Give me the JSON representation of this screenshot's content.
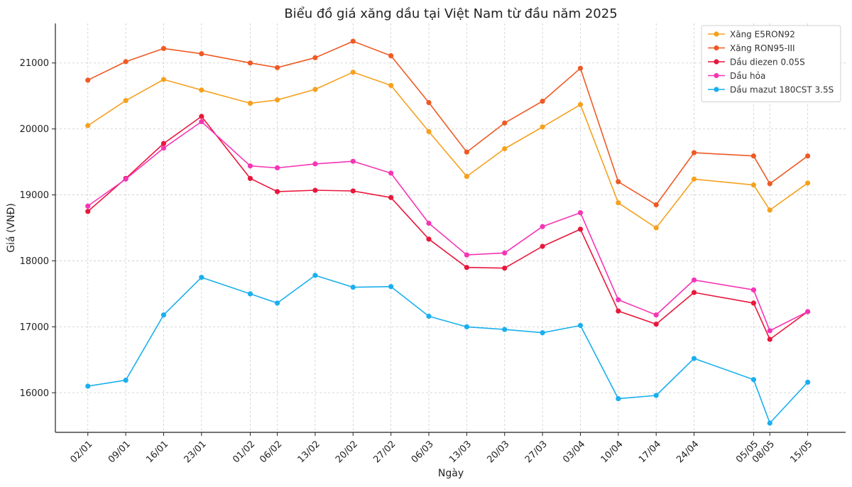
{
  "chart_data": {
    "type": "line",
    "title": "Biểu đồ giá xăng dầu tại Việt Nam từ đầu năm 2025",
    "xlabel": "Ngày",
    "ylabel": "Giá (VNĐ)",
    "ylim": [
      15400,
      21600
    ],
    "yticks": [
      16000,
      17000,
      18000,
      19000,
      20000,
      21000
    ],
    "x": [
      1,
      8,
      15,
      22,
      31,
      36,
      43,
      50,
      57,
      64,
      71,
      78,
      85,
      92,
      99,
      106,
      113,
      124,
      127,
      134
    ],
    "categories": [
      "02/01",
      "09/01",
      "16/01",
      "23/01",
      "01/02",
      "06/02",
      "13/02",
      "20/02",
      "27/02",
      "06/03",
      "13/03",
      "20/03",
      "27/03",
      "03/04",
      "10/04",
      "17/04",
      "24/04",
      "05/05",
      "08/05",
      "15/05"
    ],
    "xlim": [
      -5,
      141
    ],
    "grid": true,
    "legend_position": "top-right",
    "series": [
      {
        "name": "Xăng E5RON92",
        "color": "#F5A11F",
        "values": [
          20050,
          20430,
          20750,
          20590,
          20390,
          20440,
          20600,
          20860,
          20660,
          19960,
          19280,
          19700,
          20030,
          20370,
          18880,
          18500,
          19240,
          19150,
          18770,
          19180
        ]
      },
      {
        "name": "Xăng RON95-III",
        "color": "#EE5A24",
        "values": [
          20740,
          21020,
          21220,
          21140,
          21000,
          20930,
          21080,
          21330,
          21110,
          20400,
          19650,
          20090,
          20420,
          20920,
          19200,
          18850,
          19640,
          19590,
          19170,
          19590
        ]
      },
      {
        "name": "Dầu diezen 0.05S",
        "color": "#E8173C",
        "values": [
          18750,
          19250,
          19780,
          20190,
          19250,
          19050,
          19070,
          19060,
          18960,
          18330,
          17900,
          17890,
          18220,
          18480,
          17240,
          17040,
          17520,
          17360,
          16810,
          17230
        ]
      },
      {
        "name": "Dầu hỏa",
        "color": "#F535B5",
        "values": [
          18830,
          19240,
          19710,
          20110,
          19440,
          19410,
          19470,
          19510,
          19330,
          18570,
          18090,
          18120,
          18520,
          18730,
          17410,
          17180,
          17710,
          17560,
          16940,
          17230
        ]
      },
      {
        "name": "Dầu mazut 180CST 3.5S",
        "color": "#1AAFEF",
        "values": [
          16100,
          16190,
          17180,
          17750,
          17500,
          17360,
          17780,
          17600,
          17610,
          17160,
          17000,
          16960,
          16910,
          17020,
          15910,
          15960,
          16520,
          16200,
          15540,
          16160
        ]
      }
    ]
  }
}
